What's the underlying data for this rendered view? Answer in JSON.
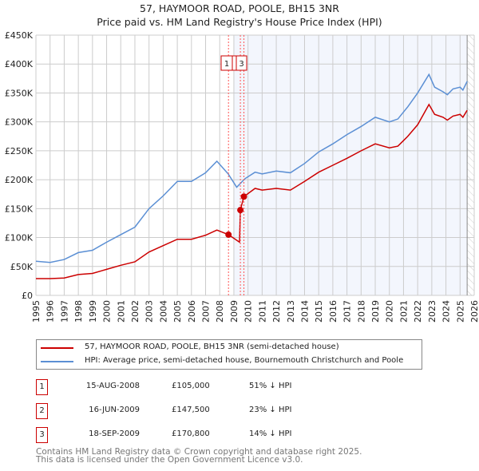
{
  "chart_data": {
    "type": "line",
    "title": "57, HAYMOOR ROAD, POOLE, BH15 3NR",
    "subtitle": "Price paid vs. HM Land Registry's House Price Index (HPI)",
    "xlim": [
      1995,
      2026
    ],
    "ylim": [
      0,
      450000
    ],
    "y_ticks": [
      "£0",
      "£50K",
      "£100K",
      "£150K",
      "£200K",
      "£250K",
      "£300K",
      "£350K",
      "£400K",
      "£450K"
    ],
    "x_ticks": [
      "1995",
      "1996",
      "1997",
      "1998",
      "1999",
      "2000",
      "2001",
      "2002",
      "2003",
      "2004",
      "2005",
      "2006",
      "2007",
      "2008",
      "2009",
      "2010",
      "2011",
      "2012",
      "2013",
      "2014",
      "2015",
      "2016",
      "2017",
      "2018",
      "2019",
      "2020",
      "2021",
      "2022",
      "2023",
      "2024",
      "2025",
      "2026"
    ],
    "grid": true,
    "series": [
      {
        "name": "57, HAYMOOR ROAD, POOLE, BH15 3NR (semi-detached house)",
        "color": "#cc0000",
        "x": [
          1995,
          1996,
          1997,
          1998,
          1999,
          2000,
          2001,
          2002,
          2003,
          2004,
          2005,
          2006,
          2007,
          2007.8,
          2008.62,
          2009.4,
          2009.46,
          2009.71,
          2010.5,
          2011,
          2012,
          2013,
          2014,
          2015,
          2016,
          2017,
          2018,
          2019,
          2020,
          2020.6,
          2021.3,
          2022,
          2022.8,
          2023.2,
          2023.8,
          2024.1,
          2024.5,
          2025,
          2025.2,
          2025.5
        ],
        "y": [
          29000,
          29000,
          30000,
          36000,
          38000,
          45000,
          52000,
          58000,
          75000,
          86000,
          97000,
          97000,
          104000,
          113000,
          105000,
          92000,
          147500,
          170800,
          185000,
          182000,
          185000,
          182000,
          197000,
          213000,
          225000,
          237000,
          250000,
          262000,
          255000,
          258000,
          275000,
          295000,
          330000,
          313000,
          308000,
          303000,
          310000,
          313000,
          308000,
          320000
        ]
      },
      {
        "name": "HPI: Average price, semi-detached house, Bournemouth Christchurch and Poole",
        "color": "#5b8fd4",
        "x": [
          1995,
          1996,
          1997,
          1998,
          1999,
          2000,
          2001,
          2002,
          2003,
          2004,
          2005,
          2006,
          2007,
          2007.8,
          2008.6,
          2009.2,
          2009.8,
          2010.5,
          2011,
          2012,
          2013,
          2014,
          2015,
          2016,
          2017,
          2018,
          2019,
          2020,
          2020.6,
          2021.3,
          2022,
          2022.8,
          2023.2,
          2023.8,
          2024.1,
          2024.5,
          2025,
          2025.2,
          2025.5
        ],
        "y": [
          59000,
          57000,
          62000,
          74000,
          78000,
          92000,
          105000,
          118000,
          150000,
          172000,
          197000,
          197000,
          212000,
          232000,
          210000,
          187000,
          202000,
          213000,
          210000,
          215000,
          212000,
          228000,
          248000,
          262000,
          278000,
          292000,
          308000,
          300000,
          305000,
          326000,
          350000,
          382000,
          360000,
          352000,
          347000,
          357000,
          360000,
          355000,
          370000
        ]
      }
    ],
    "sales": [
      {
        "n": "1",
        "x": 2008.62,
        "y": 105000,
        "date": "15-AUG-2008",
        "price": "£105,000",
        "hpi": "51% ↓ HPI"
      },
      {
        "n": "2",
        "x": 2009.46,
        "y": 147500,
        "date": "16-JUN-2009",
        "price": "£147,500",
        "hpi": "23% ↓ HPI"
      },
      {
        "n": "3",
        "x": 2009.71,
        "y": 170800,
        "date": "18-SEP-2009",
        "price": "£170,800",
        "hpi": "14% ↓ HPI"
      }
    ],
    "shade_from": 2009.0,
    "forecast_from": 2025.5
  },
  "footer": {
    "line1": "Contains HM Land Registry data © Crown copyright and database right 2025.",
    "line2": "This data is licensed under the Open Government Licence v3.0."
  }
}
